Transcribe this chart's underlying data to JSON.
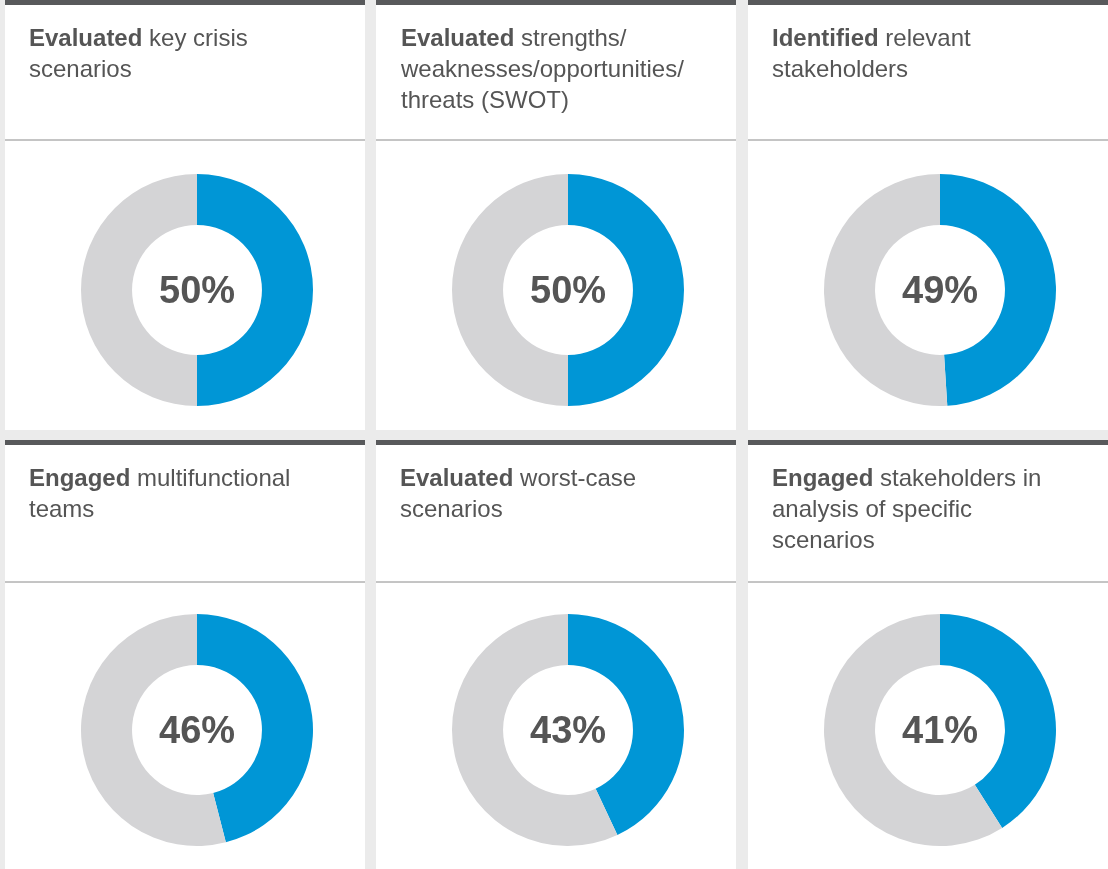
{
  "chart_data": [
    {
      "type": "donut",
      "title": "Evaluated key crisis scenarios",
      "categories": [
        null,
        null
      ],
      "values": [
        50,
        50
      ],
      "colors": [
        "#0096d6",
        "#d4d4d6"
      ],
      "annotations": [
        "50%"
      ]
    },
    {
      "type": "donut",
      "title": "Evaluated strengths/weaknesses/opportunities/threats (SWOT)",
      "categories": [
        null,
        null
      ],
      "values": [
        50,
        50
      ],
      "colors": [
        "#0096d6",
        "#d4d4d6"
      ],
      "annotations": [
        "50%"
      ]
    },
    {
      "type": "donut",
      "title": "Identified relevant stakeholders",
      "categories": [
        null,
        null
      ],
      "values": [
        49,
        51
      ],
      "colors": [
        "#0096d6",
        "#d4d4d6"
      ],
      "annotations": [
        "49%"
      ]
    },
    {
      "type": "donut",
      "title": "Engaged multifunctional teams",
      "categories": [
        null,
        null
      ],
      "values": [
        46,
        54
      ],
      "colors": [
        "#0096d6",
        "#d4d4d6"
      ],
      "annotations": [
        "46%"
      ]
    },
    {
      "type": "donut",
      "title": "Evaluated worst-case scenarios",
      "categories": [
        null,
        null
      ],
      "values": [
        43,
        57
      ],
      "colors": [
        "#0096d6",
        "#d4d4d6"
      ],
      "annotations": [
        "43%"
      ]
    },
    {
      "type": "donut",
      "title": "Engaged stakeholders in analysis of specific scenarios",
      "categories": [
        null,
        null
      ],
      "values": [
        41,
        59
      ],
      "colors": [
        "#0096d6",
        "#d4d4d6"
      ],
      "annotations": [
        "41%"
      ]
    }
  ]
}
